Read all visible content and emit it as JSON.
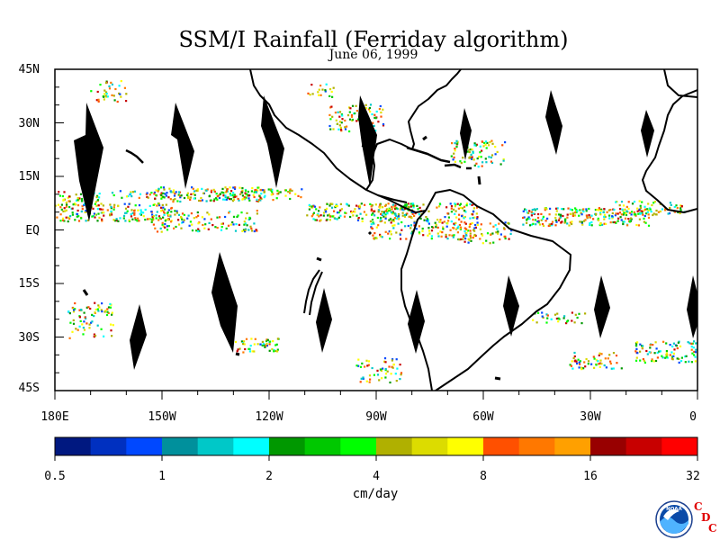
{
  "title": "SSM/I Rainfall (Ferriday algorithm)",
  "date": "June 06, 1999",
  "latitude_labels": [
    "45N",
    "30N",
    "15N",
    "EQ",
    "15S",
    "30S",
    "45S"
  ],
  "longitude_labels": [
    "180E",
    "150W",
    "120W",
    "90W",
    "60W",
    "30W",
    "0"
  ],
  "colorbar": {
    "colors": [
      "#001880",
      "#0030c0",
      "#0048ff",
      "#00909c",
      "#00c8c8",
      "#00ffff",
      "#009800",
      "#00c800",
      "#00ff00",
      "#b0b000",
      "#dcdc00",
      "#ffff00",
      "#ff5000",
      "#ff7800",
      "#ffa000",
      "#980000",
      "#c80000",
      "#ff0000"
    ],
    "tick_labels": [
      "0.5",
      "1",
      "2",
      "4",
      "8",
      "16",
      "32"
    ],
    "units": "cm/day"
  },
  "logo": {
    "name": "NOAA",
    "badge_letters": [
      "C",
      "D",
      "C"
    ]
  }
}
